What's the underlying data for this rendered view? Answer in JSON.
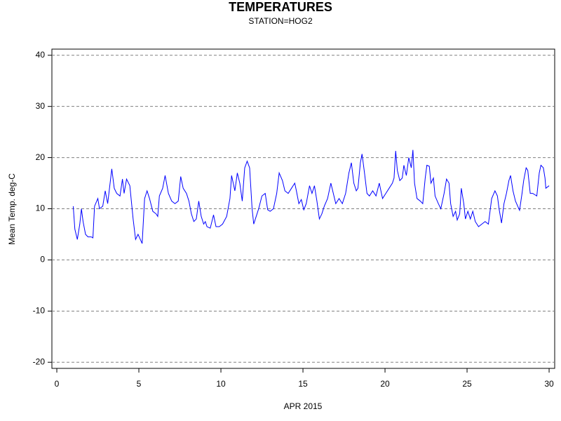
{
  "chart_data": {
    "type": "line",
    "title": "TEMPERATURES",
    "subtitle": "STATION=HOG2",
    "xlabel": "APR 2015",
    "ylabel": "Mean Temp. deg-C",
    "xlim": [
      -0.3,
      30.34
    ],
    "ylim": [
      -21.2,
      41.2
    ],
    "xticks": [
      0,
      5,
      10,
      15,
      20,
      25,
      30
    ],
    "yticks": [
      -20,
      -10,
      0,
      10,
      20,
      30,
      40
    ],
    "grid": true,
    "series": [
      {
        "name": "Mean Temp",
        "color": "#0000ff",
        "x": [
          1.0,
          1.1,
          1.25,
          1.4,
          1.5,
          1.6,
          1.75,
          1.9,
          2.1,
          2.2,
          2.3,
          2.5,
          2.6,
          2.8,
          2.95,
          3.1,
          3.35,
          3.5,
          3.65,
          3.85,
          4.0,
          4.1,
          4.25,
          4.45,
          4.65,
          4.8,
          4.95,
          5.2,
          5.35,
          5.5,
          5.65,
          5.85,
          6.05,
          6.15,
          6.25,
          6.45,
          6.6,
          6.8,
          7.0,
          7.2,
          7.4,
          7.55,
          7.7,
          7.9,
          8.05,
          8.2,
          8.35,
          8.5,
          8.65,
          8.8,
          8.95,
          9.05,
          9.15,
          9.35,
          9.55,
          9.7,
          9.9,
          10.1,
          10.35,
          10.55,
          10.65,
          10.85,
          11.0,
          11.15,
          11.3,
          11.45,
          11.6,
          11.75,
          11.9,
          12.0,
          12.15,
          12.3,
          12.5,
          12.7,
          12.85,
          13.0,
          13.2,
          13.4,
          13.55,
          13.75,
          13.9,
          14.1,
          14.3,
          14.5,
          14.6,
          14.75,
          14.9,
          15.05,
          15.2,
          15.4,
          15.55,
          15.7,
          15.85,
          16.0,
          16.15,
          16.3,
          16.5,
          16.7,
          16.85,
          17.0,
          17.2,
          17.4,
          17.6,
          17.8,
          17.95,
          18.1,
          18.25,
          18.35,
          18.5,
          18.6,
          18.75,
          18.9,
          19.05,
          19.25,
          19.45,
          19.65,
          19.85,
          20.05,
          20.25,
          20.45,
          20.55,
          20.65,
          20.75,
          20.9,
          21.05,
          21.15,
          21.3,
          21.45,
          21.6,
          21.7,
          21.8,
          21.95,
          22.15,
          22.3,
          22.45,
          22.55,
          22.7,
          22.8,
          22.95,
          23.05,
          23.25,
          23.4,
          23.6,
          23.75,
          23.9,
          24.0,
          24.15,
          24.3,
          24.4,
          24.55,
          24.65,
          24.8,
          24.9,
          25.05,
          25.2,
          25.35,
          25.5,
          25.7,
          25.9,
          26.1,
          26.3,
          26.5,
          26.7,
          26.85,
          26.95,
          27.1,
          27.25,
          27.4,
          27.55,
          27.65,
          27.8,
          27.95,
          28.2,
          28.35,
          28.45,
          28.6,
          28.7,
          28.85,
          29.0,
          29.25,
          29.4,
          29.5,
          29.65,
          29.75,
          29.8,
          30.0
        ],
        "values": [
          10.5,
          6,
          4,
          7,
          10,
          7.5,
          5,
          4.5,
          4.5,
          4.3,
          10.5,
          12,
          10,
          10.5,
          13.5,
          11,
          17.8,
          14,
          13,
          12.5,
          15.8,
          13,
          15.8,
          14.5,
          8,
          4,
          5,
          3.2,
          12,
          13.5,
          12,
          9.5,
          9,
          8.5,
          12.5,
          14,
          16.5,
          13,
          11.5,
          11,
          11.5,
          16.3,
          14,
          13,
          11.5,
          9,
          7.5,
          8,
          11.5,
          8.5,
          7,
          7.5,
          6.5,
          6.2,
          8.8,
          6.5,
          6.5,
          7,
          8.5,
          12,
          16.5,
          13.5,
          17,
          15,
          11.5,
          18,
          19.3,
          18,
          10,
          7,
          8.5,
          10,
          12.5,
          13,
          9.8,
          9.5,
          10,
          13,
          17,
          15.5,
          13.5,
          13,
          14,
          15,
          13.5,
          11,
          11.8,
          9.8,
          11,
          14.5,
          13,
          14.5,
          11.5,
          8,
          9,
          10.5,
          12,
          15,
          13,
          11,
          12,
          11,
          13,
          17,
          19,
          15,
          13.5,
          14,
          19,
          20.7,
          17,
          13,
          12.5,
          13.5,
          12.5,
          15,
          12,
          13,
          14,
          15,
          16,
          21.3,
          17.5,
          15.5,
          16,
          18.5,
          16.5,
          20,
          18,
          21.5,
          15,
          12,
          11.5,
          11,
          16,
          18.5,
          18.3,
          15,
          16,
          12.5,
          11,
          10,
          13,
          15.8,
          15,
          11,
          8.5,
          9.5,
          7.8,
          9,
          14,
          11,
          8,
          9.5,
          8,
          9.5,
          7.5,
          6.5,
          7,
          7.5,
          7,
          12,
          13.5,
          12.5,
          10,
          7.2,
          11,
          13,
          15.5,
          16.5,
          13.5,
          11.5,
          9.7,
          13,
          15.5,
          18,
          17.5,
          13,
          13,
          12.5,
          17,
          18.5,
          18,
          16,
          14,
          14.5
        ]
      }
    ]
  }
}
